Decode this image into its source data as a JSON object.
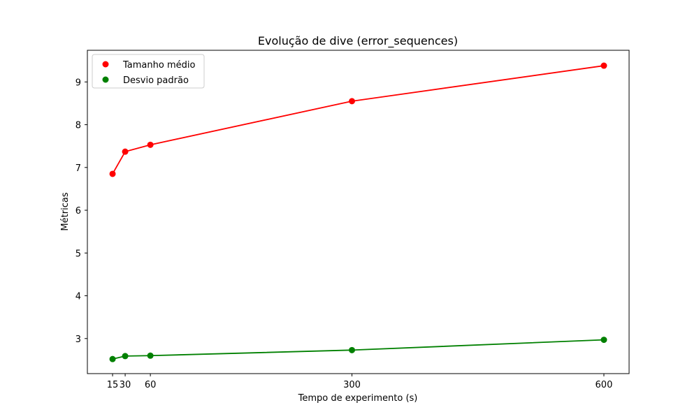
{
  "chart_data": {
    "type": "line",
    "title": "Evolução de dive (error_sequences)",
    "xlabel": "Tempo de experimento (s)",
    "ylabel": "Métricas",
    "x": [
      15,
      30,
      60,
      300,
      600
    ],
    "xticks": [
      15,
      30,
      60,
      300,
      600
    ],
    "xtick_labels": [
      "15",
      "30",
      "60",
      "300",
      "600"
    ],
    "yticks": [
      3,
      4,
      5,
      6,
      7,
      8,
      9
    ],
    "ytick_labels": [
      "3",
      "4",
      "5",
      "6",
      "7",
      "8",
      "9"
    ],
    "xlim": [
      -15,
      630
    ],
    "ylim": [
      2.18,
      9.74
    ],
    "grid": false,
    "legend_position": "upper-left",
    "series": [
      {
        "name": "Tamanho médio",
        "color": "#ff0000",
        "values": [
          6.85,
          7.37,
          7.53,
          8.55,
          9.38
        ]
      },
      {
        "name": "Desvio padrão",
        "color": "#008000",
        "values": [
          2.52,
          2.59,
          2.6,
          2.73,
          2.97
        ]
      }
    ]
  }
}
